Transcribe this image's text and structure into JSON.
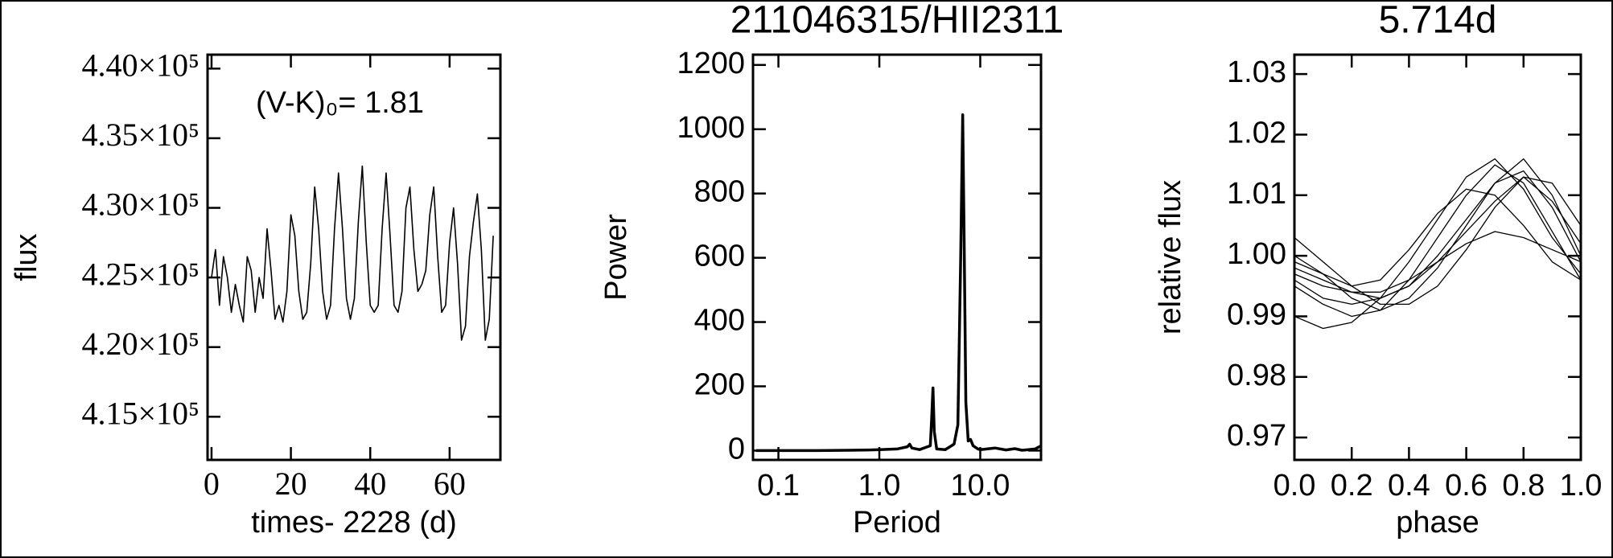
{
  "chart_data": [
    {
      "type": "line",
      "y_label": "flux",
      "x_label": "times- 2228 (d)",
      "annotation": "(V-K)₀= 1.81",
      "color": "#000000",
      "x": [
        0,
        1,
        2,
        3,
        4,
        5,
        6,
        7,
        8,
        9,
        10,
        11,
        12,
        13,
        14,
        15,
        16,
        17,
        18,
        19,
        20,
        21,
        22,
        23,
        24,
        25,
        26,
        27,
        28,
        29,
        30,
        31,
        32,
        33,
        34,
        35,
        36,
        37,
        38,
        39,
        40,
        41,
        42,
        43,
        44,
        45,
        46,
        47,
        48,
        49,
        50,
        51,
        52,
        53,
        54,
        55,
        56,
        57,
        58,
        59,
        60,
        61,
        62,
        63,
        64,
        65,
        66,
        67,
        68,
        69,
        70,
        71
      ],
      "values": [
        425000,
        427000,
        423000,
        426500,
        425000,
        422500,
        424500,
        423000,
        421800,
        426500,
        425500,
        422500,
        425000,
        423500,
        428500,
        425500,
        422000,
        423000,
        421800,
        424000,
        429500,
        428000,
        424000,
        422000,
        422500,
        426000,
        431500,
        428500,
        424000,
        422000,
        423000,
        428500,
        432500,
        428500,
        423500,
        422000,
        423500,
        429000,
        433000,
        427500,
        423000,
        422500,
        423000,
        428500,
        432500,
        428000,
        423000,
        422500,
        424000,
        430000,
        431500,
        427000,
        424000,
        424500,
        425500,
        429500,
        431500,
        426500,
        422500,
        423000,
        427500,
        430000,
        426000,
        420500,
        421500,
        426500,
        429000,
        431000,
        427000,
        420500,
        422000,
        428000
      ],
      "xlim": [
        -1,
        72.8
      ],
      "ylim": [
        411900,
        441000
      ],
      "xticks": [
        0,
        20,
        40,
        60
      ],
      "yticks": [
        {
          "value": 415000,
          "label": "4.15×10⁵"
        },
        {
          "value": 420000,
          "label": "4.20×10⁵"
        },
        {
          "value": 425000,
          "label": "4.25×10⁵"
        },
        {
          "value": 430000,
          "label": "4.30×10⁵"
        },
        {
          "value": 435000,
          "label": "4.35×10⁵"
        },
        {
          "value": 440000,
          "label": "4.40×10⁵"
        }
      ]
    },
    {
      "type": "line",
      "title": "211046315/HII2311",
      "y_label": "Power",
      "x_label": "Period",
      "x_log": true,
      "color": "#000000",
      "x": [
        0.06,
        0.1,
        0.2,
        0.5,
        0.8,
        1.0,
        1.5,
        1.9,
        2.0,
        2.1,
        2.5,
        3.2,
        3.3,
        3.4,
        3.5,
        3.7,
        4.5,
        5.5,
        6.0,
        6.4,
        6.7,
        6.9,
        7.2,
        7.6,
        8.0,
        8.5,
        9.5,
        10,
        14,
        18,
        22,
        26,
        30,
        35,
        40
      ],
      "values": [
        0,
        0,
        0,
        1,
        2,
        3,
        5,
        12,
        20,
        8,
        3,
        15,
        100,
        195,
        60,
        5,
        3,
        20,
        80,
        600,
        1045,
        700,
        150,
        30,
        35,
        15,
        5,
        3,
        8,
        2,
        6,
        1,
        3,
        5,
        15
      ],
      "xlim": [
        0.056,
        40
      ],
      "ylim": [
        -29,
        1232
      ],
      "xticks": [
        0.1,
        {
          "value": 1.0,
          "label": "1.0"
        },
        {
          "value": 10.0,
          "label": "10.0"
        }
      ],
      "yticks": [
        0,
        200,
        400,
        600,
        800,
        1000,
        1200
      ]
    },
    {
      "type": "line",
      "title": "5.714d",
      "y_label": "relative flux",
      "x_label": "phase",
      "x": [
        0,
        0.1,
        0.2,
        0.3,
        0.4,
        0.5,
        0.6,
        0.7,
        0.8,
        0.9,
        1.0
      ],
      "series": [
        {
          "color": "#000000",
          "values": [
            0.998,
            0.996,
            0.994,
            0.993,
            0.995,
            1.0,
            1.006,
            1.012,
            1.014,
            1.008,
            0.999
          ]
        },
        {
          "color": "#000000",
          "values": [
            1.0,
            0.997,
            0.993,
            0.991,
            0.993,
            0.998,
            1.005,
            1.012,
            1.016,
            1.01,
            1.0
          ]
        },
        {
          "color": "#000000",
          "values": [
            0.995,
            0.992,
            0.99,
            0.991,
            0.996,
            1.003,
            1.01,
            1.015,
            1.012,
            1.004,
            0.996
          ]
        },
        {
          "color": "#000000",
          "values": [
            1.003,
            0.999,
            0.995,
            0.992,
            0.992,
            0.995,
            1.001,
            1.008,
            1.013,
            1.009,
            1.002
          ]
        },
        {
          "color": "#000000",
          "values": [
            0.99,
            0.988,
            0.989,
            0.993,
            0.999,
            1.006,
            1.013,
            1.016,
            1.011,
            1.003,
            0.997
          ]
        },
        {
          "color": "#000000",
          "values": [
            0.997,
            0.995,
            0.994,
            0.994,
            0.996,
            0.999,
            1.002,
            1.004,
            1.003,
            1.001,
            0.999
          ]
        },
        {
          "color": "#000000",
          "values": [
            0.999,
            0.997,
            0.995,
            0.996,
            1.001,
            1.007,
            1.011,
            1.01,
            1.005,
            0.999,
            0.996
          ]
        },
        {
          "color": "#000000",
          "values": [
            0.996,
            0.993,
            0.992,
            0.993,
            0.995,
            0.999,
            1.004,
            1.009,
            1.013,
            1.012,
            1.005
          ]
        }
      ],
      "xlim": [
        0,
        1
      ],
      "ylim": [
        0.9663,
        1.0332
      ],
      "xticks": [
        {
          "value": 0,
          "label": "0.0"
        },
        0.2,
        0.4,
        0.6,
        0.8,
        {
          "value": 1,
          "label": "1.0"
        }
      ],
      "yticks": [
        0.97,
        0.98,
        0.99,
        {
          "value": 1,
          "label": "1.00"
        },
        1.01,
        1.02,
        1.03
      ]
    }
  ]
}
